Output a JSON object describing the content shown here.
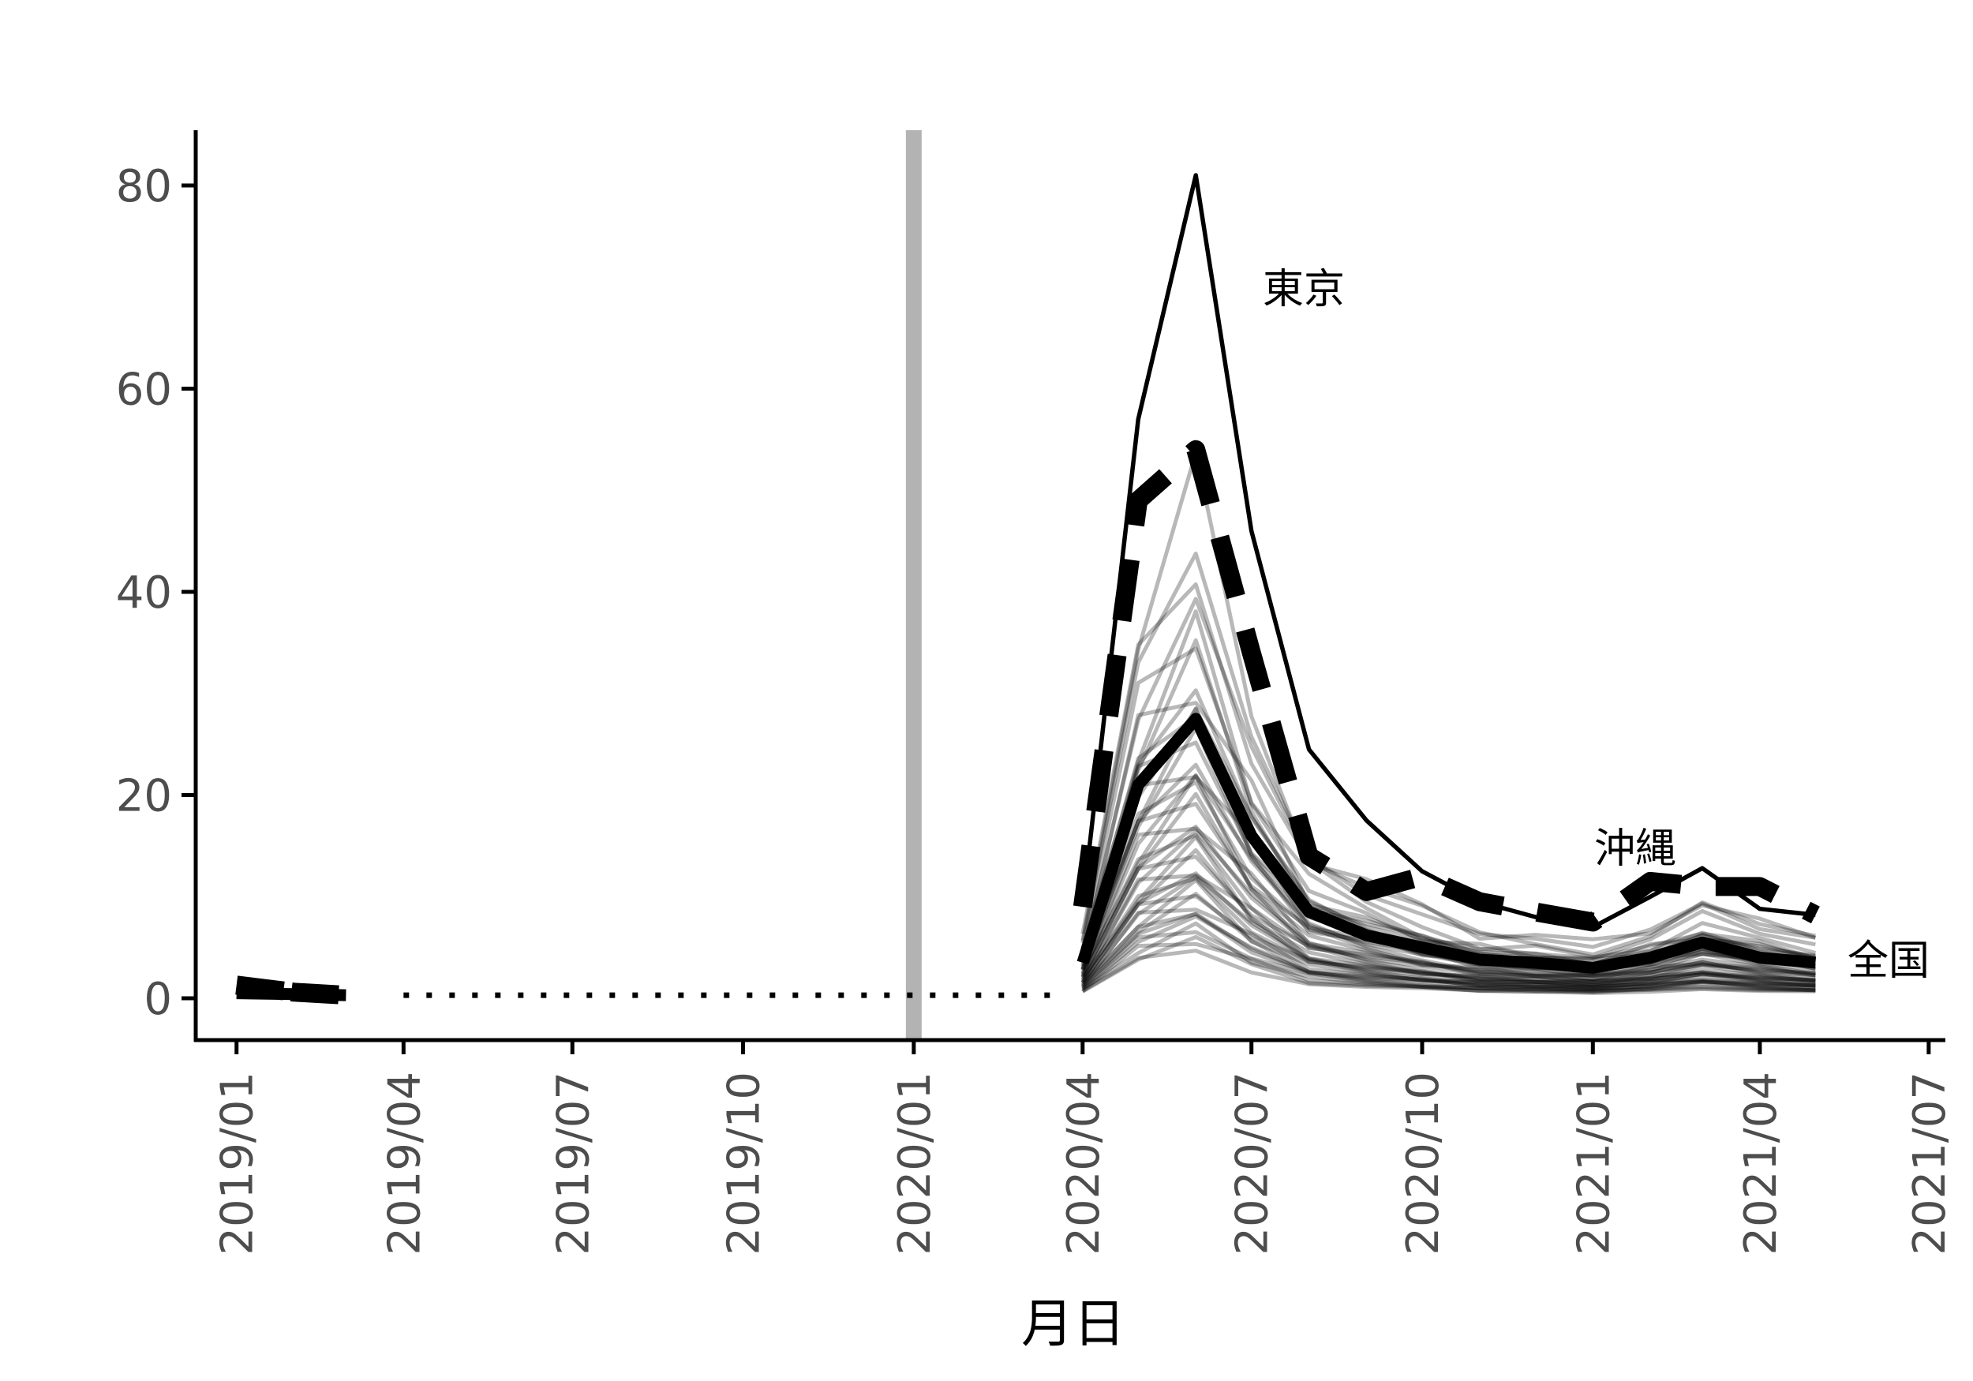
{
  "chart_data": {
    "type": "line",
    "title": "",
    "xlabel": "月日",
    "ylabel": "",
    "ylim": [
      0,
      85
    ],
    "xlim": [
      "2018-12-10",
      "2021-07-10"
    ],
    "grid": false,
    "legend": "none",
    "y_ticks": [
      0,
      20,
      40,
      60,
      80
    ],
    "x_ticks": [
      "2019/01",
      "2019/04",
      "2019/07",
      "2019/10",
      "2020/01",
      "2020/04",
      "2020/07",
      "2020/10",
      "2021/01",
      "2021/04",
      "2021/07"
    ],
    "x_tick_dates": [
      "2019-01-01",
      "2019-04-01",
      "2019-07-01",
      "2019-10-01",
      "2020-01-01",
      "2020-04-01",
      "2020-07-01",
      "2020-10-01",
      "2021-01-01",
      "2021-04-01",
      "2021-07-01"
    ],
    "reference_line": {
      "x": "2020-01-01",
      "color": "#b3b3b3"
    },
    "dotted_segment": {
      "x": [
        "2019-04-01",
        "2020-03-15"
      ],
      "y": 0.3
    },
    "months": [
      "2020-04-01",
      "2020-05-01",
      "2020-06-01",
      "2020-07-01",
      "2020-08-01",
      "2020-09-01",
      "2020-10-01",
      "2020-11-01",
      "2020-12-01",
      "2021-01-01",
      "2021-02-01",
      "2021-03-01",
      "2021-04-01",
      "2021-05-01"
    ],
    "highlight_series": [
      {
        "name": "東京",
        "style": "solid-thin",
        "x": [
          "2020-04-01",
          "2020-05-01",
          "2020-06-01",
          "2020-07-01",
          "2020-08-01",
          "2020-09-01",
          "2020-10-01",
          "2020-11-01",
          "2020-12-01",
          "2021-01-01",
          "2021-02-01",
          "2021-03-01",
          "2021-04-01",
          "2021-05-01"
        ],
        "values": [
          9,
          57,
          81,
          46,
          24.5,
          17.5,
          12.5,
          9.5,
          8,
          7,
          10,
          12.8,
          8.8,
          8.2
        ]
      },
      {
        "name": "沖縄",
        "style": "dashed-thick",
        "x": [
          "2020-04-01",
          "2020-05-01",
          "2020-06-01",
          "2020-07-01",
          "2020-08-01",
          "2020-09-01",
          "2020-10-01",
          "2020-11-01",
          "2020-12-01",
          "2021-01-01",
          "2021-02-01",
          "2021-03-01",
          "2021-04-01",
          "2021-05-01"
        ],
        "values": [
          9,
          49,
          54,
          34,
          14,
          10.5,
          12,
          9.5,
          8.5,
          7.5,
          11.5,
          11,
          11,
          8.2
        ]
      },
      {
        "name": "全国",
        "style": "solid-thick",
        "x": [
          "2020-04-01",
          "2020-05-01",
          "2020-06-01",
          "2020-07-01",
          "2020-08-01",
          "2020-09-01",
          "2020-10-01",
          "2020-11-01",
          "2020-12-01",
          "2021-01-01",
          "2021-02-01",
          "2021-03-01",
          "2021-04-01",
          "2021-05-01"
        ],
        "values": [
          3.5,
          21,
          27.5,
          16,
          8.5,
          6.2,
          5,
          3.8,
          3.5,
          3,
          4,
          5.5,
          4,
          3.5
        ]
      }
    ],
    "pre_segments": [
      {
        "style": "dashed-thick",
        "x": [
          "2019-01-01",
          "2019-02-01",
          "2019-03-01"
        ],
        "values": [
          1.3,
          0.6,
          0.3
        ]
      },
      {
        "style": "solid-thick",
        "x": [
          "2019-01-01",
          "2019-02-01",
          "2019-03-01"
        ],
        "values": [
          0.5,
          0.4,
          0.3
        ]
      }
    ],
    "background_series": {
      "count": 44,
      "color": "#000000",
      "opacity": 0.28,
      "base_values": [
        3.5,
        21,
        27.5,
        16,
        8.5,
        6.2,
        5,
        3.8,
        3.5,
        3,
        4,
        5.5,
        4,
        3.5
      ],
      "scale_factors": [
        0.18,
        0.2,
        0.22,
        0.24,
        0.26,
        0.28,
        0.3,
        0.32,
        0.34,
        0.36,
        0.38,
        0.4,
        0.42,
        0.44,
        0.46,
        0.48,
        0.5,
        0.52,
        0.55,
        0.58,
        0.6,
        0.63,
        0.66,
        0.69,
        0.72,
        0.75,
        0.78,
        0.81,
        0.84,
        0.87,
        0.9,
        0.94,
        0.98,
        1.02,
        1.06,
        1.1,
        1.15,
        1.2,
        1.26,
        1.33,
        1.42,
        1.52,
        1.63,
        1.75
      ]
    }
  }
}
